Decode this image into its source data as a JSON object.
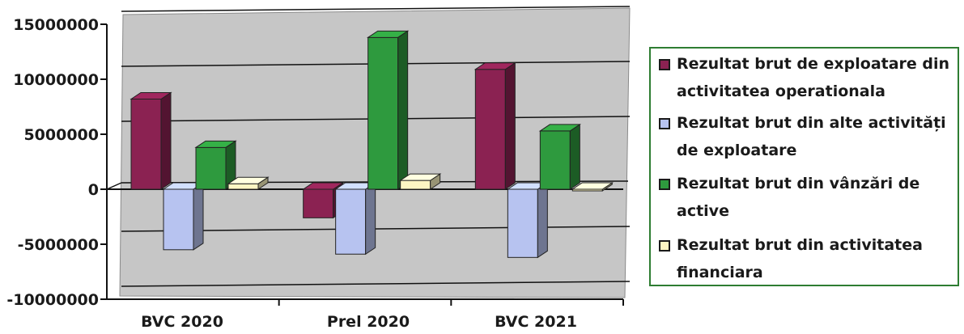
{
  "chart_data": {
    "type": "bar",
    "categories": [
      "BVC 2020",
      "Prel 2020",
      "BVC 2021"
    ],
    "ylim": [
      -10000000,
      15000000
    ],
    "yticks": [
      "15000000",
      "10000000",
      "5000000",
      "0",
      "-5000000",
      "-10000000"
    ],
    "grid": true,
    "legend_position": "right",
    "series": [
      {
        "name": "Rezultat brut de exploatare din activitatea operationala",
        "color": "#8b2252",
        "values": [
          8200000,
          -2600000,
          10900000
        ]
      },
      {
        "name": "Rezultat brut din alte activități de exploatare",
        "color": "#b7c3f0",
        "values": [
          -5500000,
          -5900000,
          -6200000
        ]
      },
      {
        "name": "Rezultat brut din vânzări de active",
        "color": "#2e9a3e",
        "values": [
          3800000,
          13800000,
          5300000
        ]
      },
      {
        "name": "Rezultat brut din activitatea financiara",
        "color": "#fdf6c3",
        "values": [
          500000,
          800000,
          0
        ]
      }
    ]
  }
}
